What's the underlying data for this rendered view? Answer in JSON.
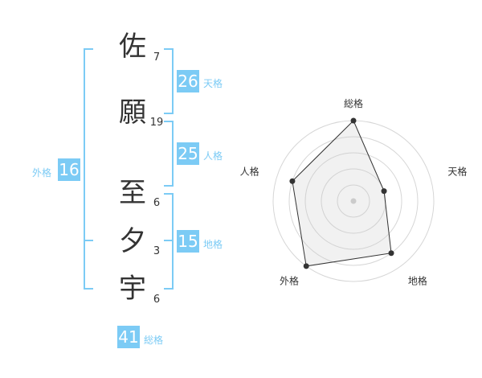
{
  "name": {
    "chars": [
      {
        "char": "佐",
        "strokes": "7"
      },
      {
        "char": "願",
        "strokes": "19"
      },
      {
        "char": "至",
        "strokes": "6"
      },
      {
        "char": "夕",
        "strokes": "3"
      },
      {
        "char": "宇",
        "strokes": "6"
      }
    ]
  },
  "kaku": {
    "tenkaku": {
      "value": "26",
      "label": "天格"
    },
    "jinkaku": {
      "value": "25",
      "label": "人格"
    },
    "chikaku": {
      "value": "15",
      "label": "地格"
    },
    "gaikaku": {
      "value": "16",
      "label": "外格"
    },
    "soukaku": {
      "value": "41",
      "label": "総格"
    }
  },
  "chart_data": {
    "type": "radar",
    "axes": [
      "総格",
      "天格",
      "地格",
      "外格",
      "人格"
    ],
    "values": [
      5,
      2,
      4,
      5,
      4
    ],
    "range": [
      0,
      5
    ],
    "rings": 5
  },
  "colors": {
    "accent": "#7ccbf5",
    "text": "#333333"
  }
}
